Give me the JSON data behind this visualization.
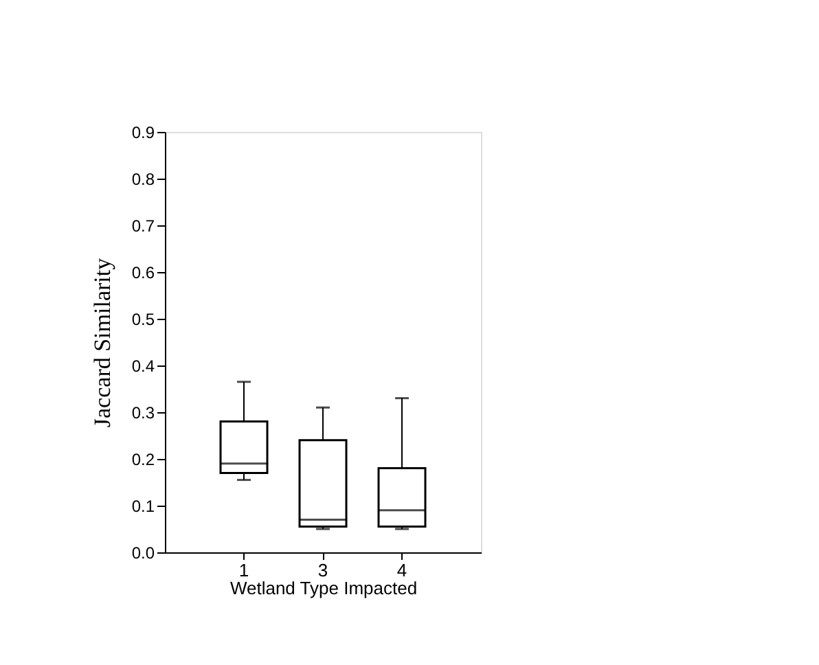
{
  "chart_data": {
    "type": "box",
    "xlabel": "Wetland Type Impacted",
    "ylabel": "Jaccard Similarity",
    "categories": [
      "1",
      "3",
      "4"
    ],
    "boxes": [
      {
        "low": 0.155,
        "q1": 0.17,
        "median": 0.19,
        "q3": 0.28,
        "high": 0.365
      },
      {
        "low": 0.05,
        "q1": 0.055,
        "median": 0.07,
        "q3": 0.24,
        "high": 0.31
      },
      {
        "low": 0.05,
        "q1": 0.055,
        "median": 0.09,
        "q3": 0.18,
        "high": 0.33
      }
    ],
    "color": "#000000",
    "ylim": [
      0,
      0.9
    ],
    "yticks": [
      {
        "value": 0,
        "label": "0.0"
      },
      0.1,
      0.2,
      0.3,
      0.4,
      0.5,
      0.6,
      0.7,
      0.8,
      0.9
    ],
    "grid": false
  }
}
